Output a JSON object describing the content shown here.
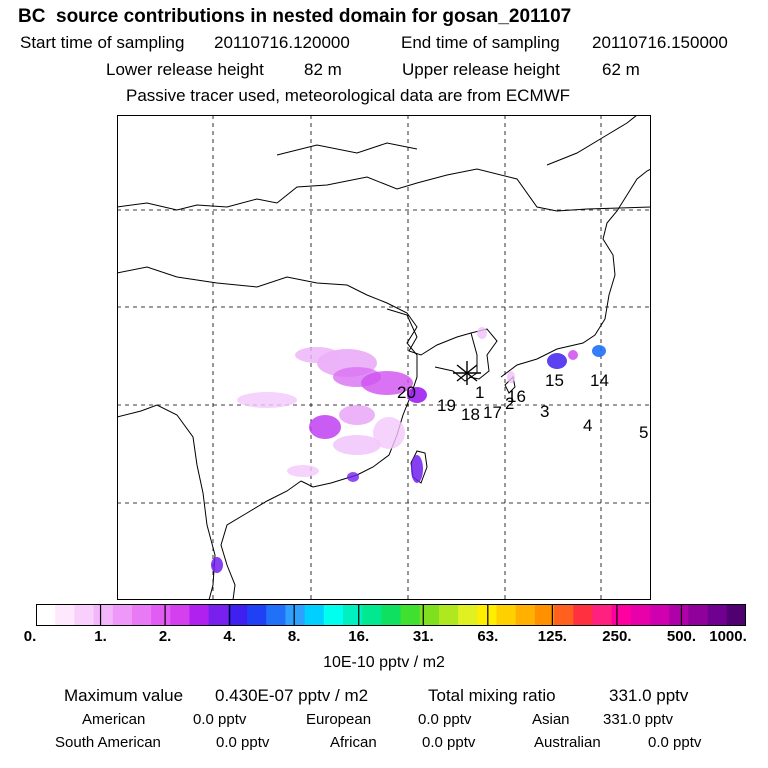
{
  "header": {
    "title": "BC  source contributions in nested domain for gosan_201107",
    "start_label": "Start time of sampling",
    "start_value": "20110716.120000",
    "end_label": "End time of sampling",
    "end_value": "20110716.150000",
    "lower_label": "Lower release height",
    "lower_value": "82 m",
    "upper_label": "Upper release height",
    "upper_value": "62 m",
    "passive_note": "Passive tracer used, meteorological data are from ECMWF"
  },
  "colorbar": {
    "tick_labels": [
      "0.",
      "1.",
      "2.",
      "4.",
      "8.",
      "16.",
      "31.",
      "63.",
      "125.",
      "250.",
      "500.",
      "1000."
    ],
    "colors": [
      "#ffffff",
      "#fde8fd",
      "#f9d0fb",
      "#f4b6fa",
      "#ee98f9",
      "#e87af6",
      "#e05cf3",
      "#d43ff0",
      "#b020ee",
      "#7820ee",
      "#4020f0",
      "#2040f5",
      "#2070f8",
      "#30a0ff",
      "#00d0ff",
      "#00ffee",
      "#00f0c0",
      "#00e890",
      "#10e060",
      "#40e030",
      "#80e020",
      "#b0e820",
      "#e0f020",
      "#ffee00",
      "#ffd000",
      "#ffb000",
      "#ff9000",
      "#ff6020",
      "#ff3040",
      "#ff2080",
      "#ff00a0",
      "#e800a8",
      "#d000b0",
      "#b000a8",
      "#90009a",
      "#700090",
      "#500070"
    ],
    "units": "10E-10 pptv / m2"
  },
  "chart_data": {
    "type": "heatmap",
    "title": "BC  source contributions in nested domain for gosan_201107",
    "colorbar_scale": [
      0,
      1,
      2,
      4,
      8,
      16,
      31,
      63,
      125,
      250,
      500,
      1000
    ],
    "units": "10E-10 pptv / m2",
    "receptor": "gosan",
    "source_labels": [
      "1",
      "2",
      "3",
      "4",
      "5",
      "14",
      "15",
      "16",
      "17",
      "18",
      "19",
      "20"
    ],
    "grid": "on"
  },
  "summary": {
    "max_label": "Maximum value",
    "max_value": "0.430E-07 pptv / m2",
    "total_label": "Total mixing ratio",
    "total_value": "331.0 pptv",
    "regions": [
      {
        "name": "American",
        "value": "0.0 pptv"
      },
      {
        "name": "European",
        "value": "0.0 pptv"
      },
      {
        "name": "Asian",
        "value": "331.0 pptv"
      },
      {
        "name": "South American",
        "value": "0.0 pptv"
      },
      {
        "name": "African",
        "value": "0.0 pptv"
      },
      {
        "name": "Australian",
        "value": "0.0 pptv"
      }
    ]
  }
}
